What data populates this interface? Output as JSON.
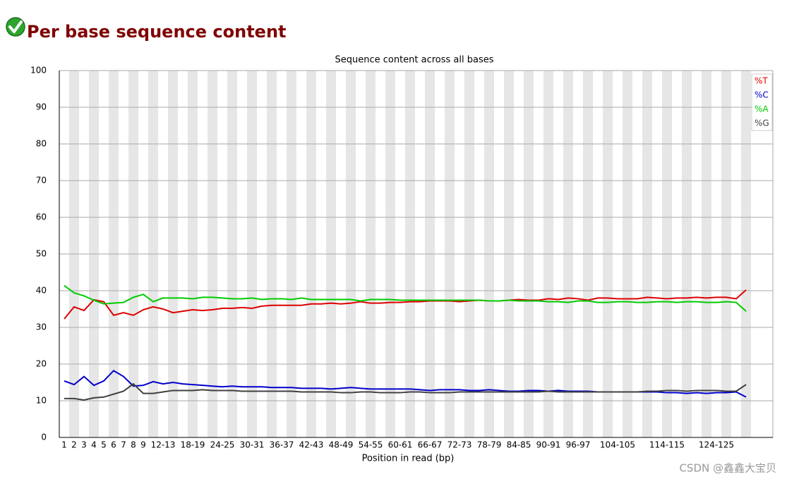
{
  "header": {
    "title": "Per base sequence content"
  },
  "watermark": "CSDN @鑫鑫大宝贝",
  "chart_data": {
    "type": "line",
    "title": "Sequence content across all bases",
    "x_label": "Position in read (bp)",
    "categories": [
      "1",
      "2",
      "3",
      "4",
      "5",
      "6",
      "7",
      "8",
      "9",
      null,
      "12-13",
      null,
      null,
      "18-19",
      null,
      null,
      "24-25",
      null,
      null,
      "30-31",
      null,
      null,
      "36-37",
      null,
      null,
      "42-43",
      null,
      null,
      "48-49",
      null,
      null,
      "54-55",
      null,
      null,
      "60-61",
      null,
      null,
      "66-67",
      null,
      null,
      "72-73",
      null,
      null,
      "78-79",
      null,
      null,
      "84-85",
      null,
      null,
      "90-91",
      null,
      null,
      "96-97",
      null,
      null,
      null,
      "104-105",
      null,
      null,
      null,
      null,
      "114-115",
      null,
      null,
      null,
      null,
      "124-125",
      null,
      null,
      null
    ],
    "series": [
      {
        "name": "%T",
        "color": "#dd0000",
        "values": [
          32.3,
          35.6,
          34.6,
          37.5,
          37.0,
          33.3,
          34.0,
          33.3,
          34.8,
          35.6,
          35.0,
          34.0,
          34.4,
          34.8,
          34.6,
          34.8,
          35.2,
          35.2,
          35.4,
          35.2,
          35.8,
          36.0,
          36.0,
          36.0,
          36.0,
          36.4,
          36.4,
          36.6,
          36.4,
          36.6,
          37.0,
          36.6,
          36.6,
          36.8,
          36.8,
          37.0,
          37.0,
          37.2,
          37.2,
          37.2,
          37.0,
          37.2,
          37.4,
          37.2,
          37.2,
          37.4,
          37.6,
          37.4,
          37.4,
          37.8,
          37.6,
          38.0,
          37.8,
          37.4,
          38.0,
          38.0,
          37.8,
          37.8,
          37.8,
          38.2,
          38.0,
          37.8,
          38.0,
          38.0,
          38.2,
          38.0,
          38.2,
          38.2,
          37.8,
          40.2
        ]
      },
      {
        "name": "%C",
        "color": "#0000cc",
        "values": [
          15.4,
          14.4,
          16.6,
          14.2,
          15.4,
          18.2,
          16.6,
          14.0,
          14.2,
          15.2,
          14.6,
          15.0,
          14.6,
          14.4,
          14.2,
          14.0,
          13.8,
          14.0,
          13.8,
          13.8,
          13.8,
          13.6,
          13.6,
          13.6,
          13.4,
          13.4,
          13.4,
          13.2,
          13.4,
          13.6,
          13.4,
          13.2,
          13.2,
          13.2,
          13.2,
          13.2,
          13.0,
          12.8,
          13.0,
          13.0,
          13.0,
          12.8,
          12.8,
          13.0,
          12.8,
          12.6,
          12.6,
          12.8,
          12.8,
          12.6,
          12.8,
          12.6,
          12.6,
          12.6,
          12.4,
          12.4,
          12.4,
          12.4,
          12.4,
          12.4,
          12.4,
          12.2,
          12.2,
          12.0,
          12.2,
          12.0,
          12.2,
          12.2,
          12.4,
          11.0
        ]
      },
      {
        "name": "%A",
        "color": "#00cc00",
        "values": [
          41.4,
          39.4,
          38.6,
          37.4,
          36.4,
          36.6,
          36.8,
          38.2,
          39.0,
          37.0,
          38.0,
          38.0,
          38.0,
          37.8,
          38.2,
          38.2,
          38.0,
          37.8,
          37.8,
          38.0,
          37.6,
          37.8,
          37.8,
          37.6,
          38.0,
          37.6,
          37.6,
          37.6,
          37.6,
          37.6,
          37.2,
          37.6,
          37.6,
          37.6,
          37.4,
          37.4,
          37.4,
          37.4,
          37.4,
          37.4,
          37.4,
          37.4,
          37.4,
          37.2,
          37.2,
          37.4,
          37.2,
          37.2,
          37.2,
          37.0,
          37.0,
          36.8,
          37.2,
          37.2,
          36.8,
          36.8,
          37.0,
          37.0,
          36.8,
          36.8,
          37.0,
          37.0,
          36.8,
          37.0,
          37.0,
          36.8,
          36.8,
          37.0,
          36.8,
          34.4
        ]
      },
      {
        "name": "%G",
        "color": "#404040",
        "values": [
          10.6,
          10.6,
          10.2,
          10.8,
          11.0,
          11.8,
          12.6,
          14.6,
          12.0,
          12.0,
          12.4,
          12.8,
          12.8,
          12.8,
          13.0,
          12.8,
          12.8,
          12.8,
          12.6,
          12.6,
          12.6,
          12.6,
          12.6,
          12.6,
          12.4,
          12.4,
          12.4,
          12.4,
          12.2,
          12.2,
          12.4,
          12.4,
          12.2,
          12.2,
          12.2,
          12.4,
          12.4,
          12.2,
          12.2,
          12.2,
          12.4,
          12.4,
          12.4,
          12.4,
          12.4,
          12.4,
          12.4,
          12.4,
          12.4,
          12.6,
          12.4,
          12.4,
          12.4,
          12.4,
          12.4,
          12.4,
          12.4,
          12.4,
          12.4,
          12.6,
          12.6,
          12.8,
          12.8,
          12.6,
          12.8,
          12.8,
          12.8,
          12.6,
          12.6,
          14.4
        ]
      }
    ],
    "ylim": [
      0,
      100
    ],
    "yticks": [
      0,
      10,
      20,
      30,
      40,
      50,
      60,
      70,
      80,
      90,
      100
    ],
    "grid": true,
    "legend": "top-right"
  }
}
